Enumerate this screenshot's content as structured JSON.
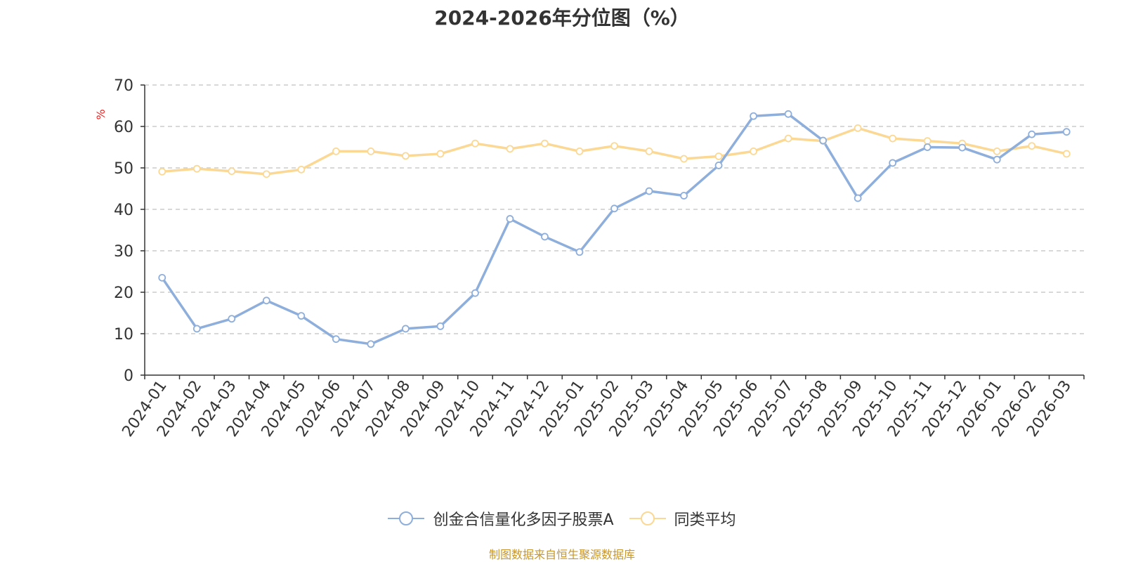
{
  "chart_data": {
    "type": "line",
    "title": "2024-2026年分位图（%）",
    "ylabel": "%",
    "xlabel": "",
    "ylim": [
      0,
      70
    ],
    "yticks": [
      0,
      10,
      20,
      30,
      40,
      50,
      60,
      70
    ],
    "grid": true,
    "legend_position": "bottom",
    "categories": [
      "2024-01",
      "2024-02",
      "2024-03",
      "2024-04",
      "2024-05",
      "2024-06",
      "2024-07",
      "2024-08",
      "2024-09",
      "2024-10",
      "2024-11",
      "2024-12",
      "2025-01",
      "2025-02",
      "2025-03",
      "2025-04",
      "2025-05",
      "2025-06",
      "2025-07",
      "2025-08",
      "2025-09",
      "2025-10",
      "2025-11",
      "2025-12",
      "2026-01",
      "2026-02",
      "2026-03"
    ],
    "series": [
      {
        "name": "创金合信量化多因子股票A",
        "color": "#8eaedb",
        "values": [
          23.5,
          11.2,
          13.6,
          18.0,
          14.3,
          8.7,
          7.5,
          11.2,
          11.8,
          19.8,
          37.7,
          33.4,
          29.7,
          40.2,
          44.4,
          43.3,
          50.6,
          62.5,
          63.0,
          56.6,
          42.7,
          51.2,
          55.0,
          54.9,
          52.0,
          58.1,
          58.7
        ]
      },
      {
        "name": "同类平均",
        "color": "#fbd894",
        "values": [
          49.1,
          49.8,
          49.2,
          48.5,
          49.6,
          54.0,
          54.0,
          52.9,
          53.4,
          55.9,
          54.6,
          55.9,
          54.0,
          55.3,
          54.0,
          52.2,
          52.8,
          54.0,
          57.1,
          56.5,
          59.6,
          57.1,
          56.5,
          55.9,
          54.0,
          55.3,
          53.4
        ]
      }
    ]
  },
  "source_text": "制图数据来自恒生聚源数据库"
}
